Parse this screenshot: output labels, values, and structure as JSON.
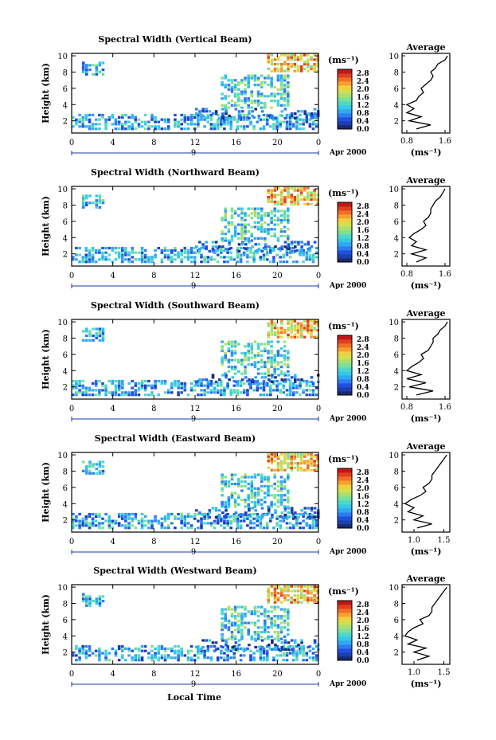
{
  "figure": {
    "x_axis_label": "Local Time",
    "day_label": "9",
    "month_label": "Apr 2000"
  },
  "chart_data": [
    {
      "type": "heatmap",
      "title": "Spectral Width (Vertical Beam)",
      "ylabel": "Height (km)",
      "x_ticks": [
        "0",
        "4",
        "8",
        "12",
        "16",
        "20",
        "0"
      ],
      "y_ticks": [
        "2",
        "4",
        "6",
        "8",
        "10"
      ],
      "xlim": [
        0,
        24
      ],
      "ylim": [
        0.5,
        10.3
      ],
      "colorbar": {
        "unit": "(ms⁻¹)",
        "ticks": [
          "0.0",
          "0.4",
          "0.8",
          "1.2",
          "1.6",
          "2.0",
          "2.4",
          "2.8"
        ],
        "range": [
          0,
          3.0
        ]
      },
      "profile": {
        "title": "Average",
        "xlabel": "(ms⁻¹)",
        "x_ticks": [
          "0.8",
          "1.6"
        ],
        "xlim": [
          0.7,
          1.7
        ],
        "heights": [
          1,
          1.5,
          2,
          2.5,
          3,
          3.5,
          4,
          4.5,
          5,
          5.5,
          6,
          6.5,
          7,
          7.5,
          8,
          8.5,
          9,
          9.5,
          10
        ],
        "values": [
          1.0,
          1.3,
          0.85,
          1.1,
          0.8,
          0.95,
          0.8,
          1.0,
          1.05,
          1.15,
          1.1,
          1.2,
          1.3,
          1.35,
          1.3,
          1.4,
          1.45,
          1.6,
          1.65
        ]
      }
    },
    {
      "type": "heatmap",
      "title": "Spectral Width (Northward Beam)",
      "ylabel": "Height (km)",
      "x_ticks": [
        "0",
        "4",
        "8",
        "12",
        "16",
        "20",
        "0"
      ],
      "y_ticks": [
        "2",
        "4",
        "6",
        "8",
        "10"
      ],
      "xlim": [
        0,
        24
      ],
      "ylim": [
        0.5,
        10.3
      ],
      "colorbar": {
        "unit": "(ms⁻¹)",
        "ticks": [
          "0.0",
          "0.4",
          "0.8",
          "1.2",
          "1.6",
          "2.0",
          "2.4",
          "2.8"
        ],
        "range": [
          0,
          3.0
        ]
      },
      "profile": {
        "title": "Average",
        "xlabel": "(ms⁻¹)",
        "x_ticks": [
          "0.8",
          "1.6"
        ],
        "xlim": [
          0.7,
          1.7
        ],
        "heights": [
          1,
          1.5,
          2,
          2.5,
          3,
          3.5,
          4,
          4.5,
          5,
          5.5,
          6,
          6.5,
          7,
          7.5,
          8,
          8.5,
          9,
          9.5,
          10
        ],
        "values": [
          1.0,
          1.2,
          0.9,
          1.2,
          0.9,
          1.0,
          0.85,
          0.95,
          1.1,
          1.2,
          1.15,
          1.25,
          1.3,
          1.3,
          1.35,
          1.4,
          1.5,
          1.55,
          1.6
        ]
      }
    },
    {
      "type": "heatmap",
      "title": "Spectral Width (Southward Beam)",
      "ylabel": "Height (km)",
      "x_ticks": [
        "0",
        "4",
        "8",
        "12",
        "16",
        "20",
        "0"
      ],
      "y_ticks": [
        "2",
        "4",
        "6",
        "8",
        "10"
      ],
      "xlim": [
        0,
        24
      ],
      "ylim": [
        0.5,
        10.3
      ],
      "colorbar": {
        "unit": "(ms⁻¹)",
        "ticks": [
          "0.0",
          "0.4",
          "0.8",
          "1.2",
          "1.6",
          "2.0",
          "2.4",
          "2.8"
        ],
        "range": [
          0,
          3.0
        ]
      },
      "profile": {
        "title": "Average",
        "xlabel": "(ms⁻¹)",
        "x_ticks": [
          "0.8",
          "1.6"
        ],
        "xlim": [
          0.7,
          1.7
        ],
        "heights": [
          1,
          1.5,
          2,
          2.5,
          3,
          3.5,
          4,
          4.5,
          5,
          5.5,
          6,
          6.5,
          7,
          7.5,
          8,
          8.5,
          9,
          9.5,
          10
        ],
        "values": [
          1.0,
          1.35,
          0.85,
          1.2,
          0.8,
          1.1,
          0.8,
          0.9,
          1.05,
          1.15,
          1.1,
          1.25,
          1.3,
          1.35,
          1.35,
          1.45,
          1.5,
          1.6,
          1.65
        ]
      }
    },
    {
      "type": "heatmap",
      "title": "Spectral Width (Eastward Beam)",
      "ylabel": "Height (km)",
      "x_ticks": [
        "0",
        "4",
        "8",
        "12",
        "16",
        "20",
        "0"
      ],
      "y_ticks": [
        "2",
        "4",
        "6",
        "8",
        "10"
      ],
      "xlim": [
        0,
        24
      ],
      "ylim": [
        0.5,
        10.3
      ],
      "colorbar": {
        "unit": "(ms⁻¹)",
        "ticks": [
          "0.0",
          "0.4",
          "0.8",
          "1.2",
          "1.6",
          "2.0",
          "2.4",
          "2.8"
        ],
        "range": [
          0,
          3.0
        ]
      },
      "profile": {
        "title": "Average",
        "xlabel": "(ms⁻¹)",
        "x_ticks": [
          "1.0",
          "1.5"
        ],
        "xlim": [
          0.8,
          1.6
        ],
        "heights": [
          1,
          1.5,
          2,
          2.5,
          3,
          3.5,
          4,
          4.5,
          5,
          5.5,
          6,
          6.5,
          7,
          7.5,
          8,
          8.5,
          9,
          9.5,
          10
        ],
        "values": [
          1.05,
          1.3,
          1.0,
          1.15,
          0.9,
          1.0,
          0.85,
          0.95,
          1.1,
          1.2,
          1.15,
          1.25,
          1.3,
          1.3,
          1.35,
          1.4,
          1.45,
          1.5,
          1.55
        ]
      }
    },
    {
      "type": "heatmap",
      "title": "Spectral Width (Westward Beam)",
      "ylabel": "Height (km)",
      "x_ticks": [
        "0",
        "4",
        "8",
        "12",
        "16",
        "20",
        "0"
      ],
      "y_ticks": [
        "2",
        "4",
        "6",
        "8",
        "10"
      ],
      "xlim": [
        0,
        24
      ],
      "ylim": [
        0.5,
        10.3
      ],
      "colorbar": {
        "unit": "(ms⁻¹)",
        "ticks": [
          "0.0",
          "0.4",
          "0.8",
          "1.2",
          "1.6",
          "2.0",
          "2.4",
          "2.8"
        ],
        "range": [
          0,
          3.0
        ]
      },
      "profile": {
        "title": "Average",
        "xlabel": "(ms⁻¹)",
        "x_ticks": [
          "1.0",
          "1.5"
        ],
        "xlim": [
          0.8,
          1.6
        ],
        "heights": [
          1,
          1.5,
          2,
          2.5,
          3,
          3.5,
          4,
          4.5,
          5,
          5.5,
          6,
          6.5,
          7,
          7.5,
          8,
          8.5,
          9,
          9.5,
          10
        ],
        "values": [
          1.05,
          1.25,
          1.0,
          1.2,
          0.9,
          1.05,
          0.85,
          0.9,
          1.0,
          1.15,
          1.1,
          1.25,
          1.3,
          1.3,
          1.35,
          1.4,
          1.45,
          1.5,
          1.55
        ]
      }
    }
  ]
}
